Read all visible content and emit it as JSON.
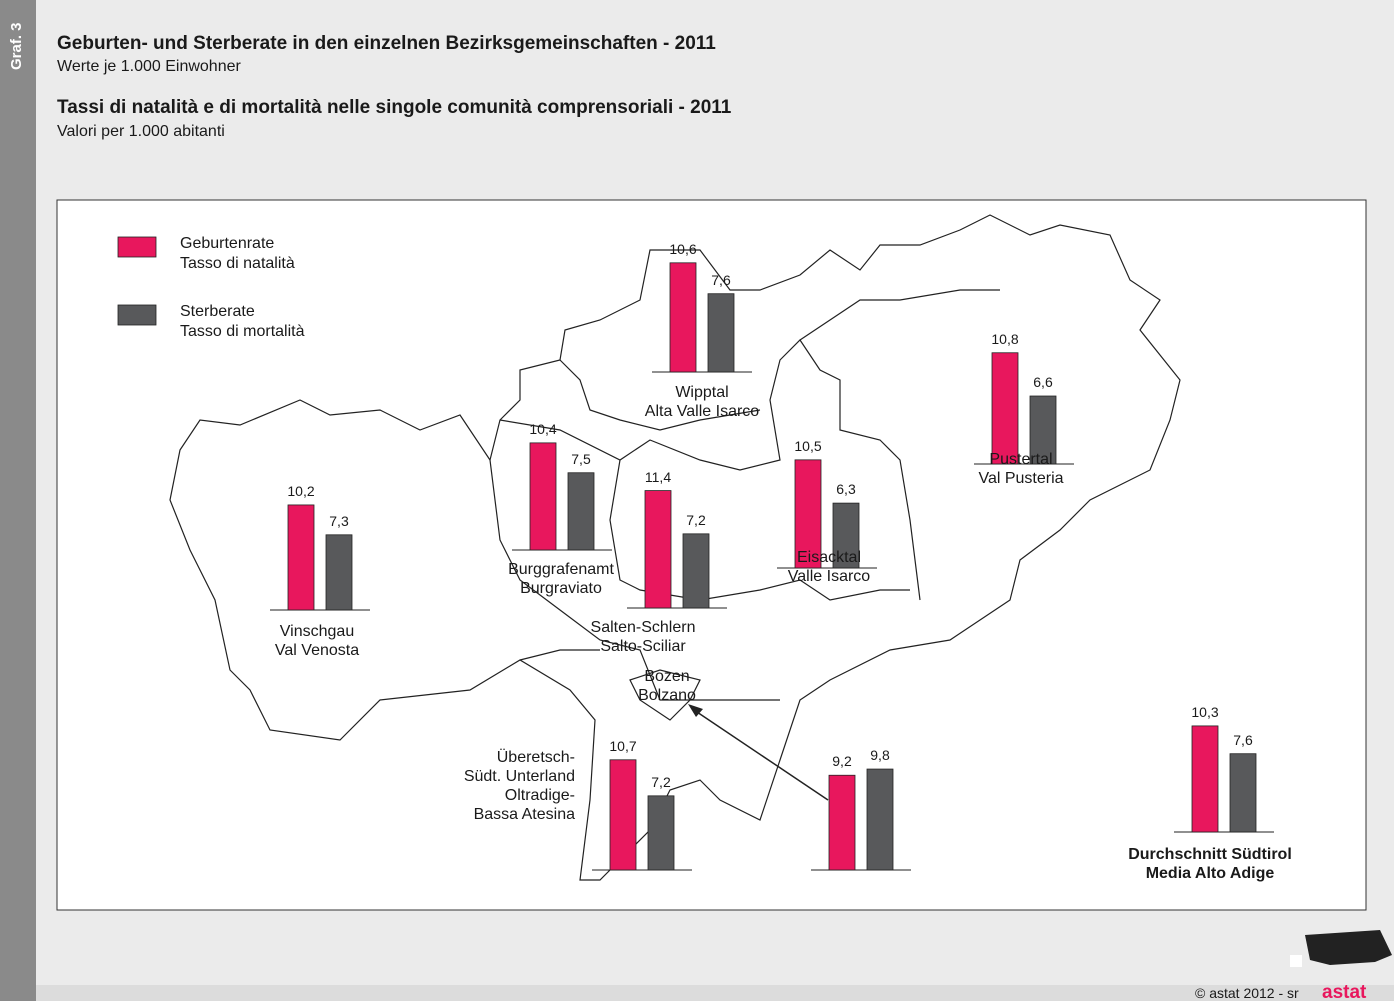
{
  "graph_label": "Graf. 3",
  "chart_data": {
    "type": "bar",
    "title": "Geburten- und Sterberate in den einzelnen Bezirksgemeinschaften - 2011",
    "subtitle": "Werte je 1.000 Einwohner",
    "title_it": "Tassi di natalità e di mortalità nelle singole comunità comprensoriali - 2011",
    "subtitle_it": "Valori per 1.000 abitanti",
    "categories": [
      "Vinschgau\nVal Venosta",
      "Burggrafenamt\nBurgraviato",
      "Wipptal\nAlta Valle Isarco",
      "Salten-Schlern\nSalto-Sciliar",
      "Eisacktal\nValle Isarco",
      "Pustertal\nVal Pusteria",
      "Bozen\nBolzano",
      "Überetsch-\nSüdt. Unterland\nOltradige-\nBassa Atesina",
      "Durchschnitt Südtirol\nMedia Alto Adige"
    ],
    "series": [
      {
        "name": "Geburtenrate\nTasso di natalità",
        "color": "#e8175d",
        "values": [
          10.2,
          10.4,
          10.6,
          11.4,
          10.5,
          10.8,
          9.2,
          10.7,
          10.3
        ],
        "value_labels": [
          "10,2",
          "10,4",
          "10,6",
          "11,4",
          "10,5",
          "10,8",
          "9,2",
          "10,7",
          "10,3"
        ]
      },
      {
        "name": "Sterberate\nTasso di mortalità",
        "color": "#58595b",
        "values": [
          7.3,
          7.5,
          7.6,
          7.2,
          6.3,
          6.6,
          9.8,
          7.2,
          7.6
        ],
        "value_labels": [
          "7,3",
          "7,5",
          "7,6",
          "7,2",
          "6,3",
          "6,6",
          "9,8",
          "7,2",
          "7,6"
        ]
      }
    ]
  },
  "footer": {
    "copyright": "©  astat 2012 - sr",
    "logo": "astat"
  }
}
